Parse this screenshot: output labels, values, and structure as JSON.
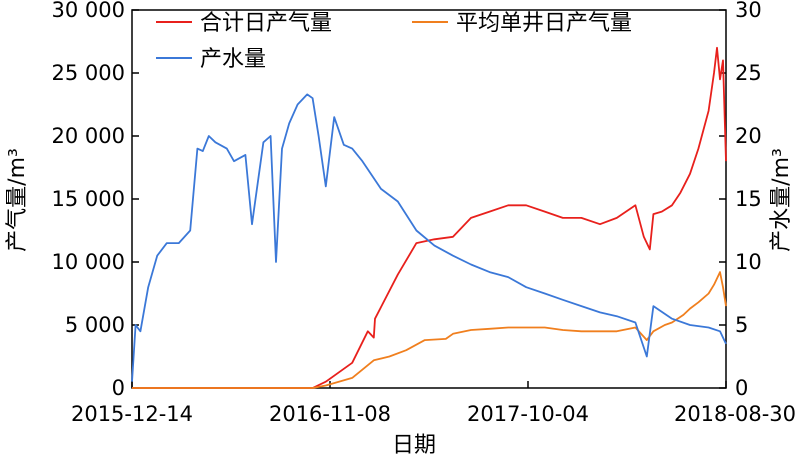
{
  "chart_data": {
    "type": "line",
    "x_axis": {
      "title": "日期",
      "range": [
        "2015-12-14",
        "2018-08-30"
      ],
      "ticks": [
        "2015-12-14",
        "2016-11-08",
        "2017-10-04",
        "2018-08-30"
      ]
    },
    "y_axis_left": {
      "title": "产气量/m³",
      "range": [
        0,
        30000
      ],
      "ticks": [
        "0",
        "5 000",
        "10 000",
        "15 000",
        "20 000",
        "25 000",
        "30 000"
      ]
    },
    "y_axis_right": {
      "title": "产水量/m³",
      "range": [
        0,
        30
      ],
      "ticks": [
        "0",
        "5",
        "10",
        "15",
        "20",
        "25",
        "30"
      ]
    },
    "legend": {
      "placement": "top"
    },
    "grid": false,
    "series": [
      {
        "name": "合计日产气量",
        "axis": "left",
        "color": "#e8201c",
        "x": [
          "2015-12-14",
          "2016-10-10",
          "2016-11-01",
          "2016-12-15",
          "2017-01-10",
          "2017-01-20",
          "2017-01-22",
          "2017-03-01",
          "2017-04-01",
          "2017-05-01",
          "2017-06-01",
          "2017-07-01",
          "2017-08-01",
          "2017-09-01",
          "2017-10-01",
          "2017-11-01",
          "2017-12-01",
          "2018-01-01",
          "2018-02-01",
          "2018-03-01",
          "2018-04-01",
          "2018-04-15",
          "2018-04-25",
          "2018-05-01",
          "2018-05-15",
          "2018-06-01",
          "2018-06-15",
          "2018-07-01",
          "2018-07-15",
          "2018-08-01",
          "2018-08-10",
          "2018-08-15",
          "2018-08-20",
          "2018-08-25",
          "2018-08-30"
        ],
        "values": [
          0,
          0,
          500,
          2000,
          4500,
          4000,
          5500,
          9000,
          11500,
          11800,
          12000,
          13500,
          14000,
          14500,
          14500,
          14000,
          13500,
          13500,
          13000,
          13500,
          14500,
          12000,
          11000,
          13800,
          14000,
          14500,
          15500,
          17000,
          19000,
          22000,
          25000,
          27000,
          24500,
          26000,
          18000
        ]
      },
      {
        "name": "平均单井日产气量",
        "axis": "right",
        "color": "#f07f1e",
        "x": [
          "2015-12-14",
          "2016-10-10",
          "2016-11-01",
          "2016-12-15",
          "2017-01-20",
          "2017-02-15",
          "2017-03-15",
          "2017-04-15",
          "2017-05-20",
          "2017-06-01",
          "2017-07-01",
          "2017-08-01",
          "2017-09-01",
          "2017-10-01",
          "2017-11-01",
          "2017-12-01",
          "2018-01-01",
          "2018-02-01",
          "2018-03-01",
          "2018-04-01",
          "2018-04-20",
          "2018-05-01",
          "2018-05-20",
          "2018-06-01",
          "2018-06-20",
          "2018-07-01",
          "2018-07-15",
          "2018-08-01",
          "2018-08-10",
          "2018-08-20",
          "2018-08-25",
          "2018-08-30"
        ],
        "values": [
          0,
          0,
          0.2,
          0.8,
          2.2,
          2.5,
          3.0,
          3.8,
          3.9,
          4.3,
          4.6,
          4.7,
          4.8,
          4.8,
          4.8,
          4.6,
          4.5,
          4.5,
          4.5,
          4.8,
          3.8,
          4.5,
          5.0,
          5.2,
          5.8,
          6.3,
          6.8,
          7.5,
          8.2,
          9.2,
          8.0,
          6.5
        ]
      },
      {
        "name": "产水量",
        "axis": "right",
        "color": "#3b78d8",
        "x": [
          "2015-12-14",
          "2015-12-20",
          "2015-12-28",
          "2016-01-10",
          "2016-01-25",
          "2016-02-10",
          "2016-03-01",
          "2016-03-20",
          "2016-04-01",
          "2016-04-10",
          "2016-04-20",
          "2016-05-01",
          "2016-05-20",
          "2016-06-01",
          "2016-06-20",
          "2016-07-01",
          "2016-07-20",
          "2016-08-01",
          "2016-08-10",
          "2016-08-20",
          "2016-09-01",
          "2016-09-15",
          "2016-10-01",
          "2016-10-10",
          "2016-10-20",
          "2016-11-01",
          "2016-11-15",
          "2016-12-01",
          "2016-12-15",
          "2017-01-01",
          "2017-02-01",
          "2017-03-01",
          "2017-04-01",
          "2017-05-01",
          "2017-06-01",
          "2017-07-01",
          "2017-08-01",
          "2017-09-01",
          "2017-10-01",
          "2017-11-01",
          "2017-12-01",
          "2018-01-01",
          "2018-02-01",
          "2018-03-01",
          "2018-04-01",
          "2018-04-20",
          "2018-05-01",
          "2018-06-01",
          "2018-07-01",
          "2018-08-01",
          "2018-08-20",
          "2018-08-30"
        ],
        "values": [
          0.5,
          5,
          4.5,
          8,
          10.5,
          11.5,
          11.5,
          12.5,
          19,
          18.8,
          20,
          19.5,
          19,
          18,
          18.5,
          13,
          19.5,
          20,
          10,
          19,
          21,
          22.5,
          23.3,
          23,
          20,
          16,
          21.5,
          19.3,
          19,
          18,
          15.8,
          14.8,
          12.5,
          11.3,
          10.5,
          9.8,
          9.2,
          8.8,
          8.0,
          7.5,
          7.0,
          6.5,
          6.0,
          5.7,
          5.2,
          2.5,
          6.5,
          5.5,
          5.0,
          4.8,
          4.5,
          3.5
        ]
      }
    ]
  }
}
